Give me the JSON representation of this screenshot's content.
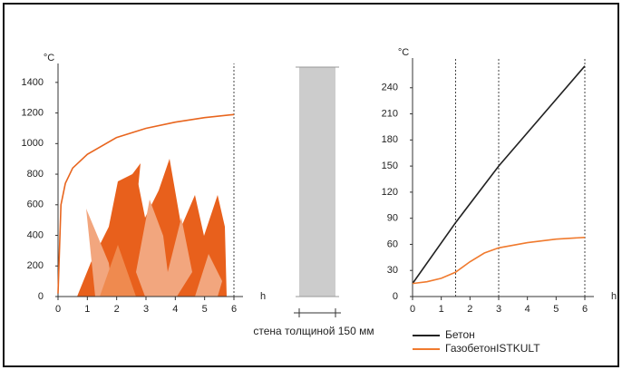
{
  "chart_data": [
    {
      "type": "line",
      "ylabel": "°C",
      "xlabel": "h",
      "xlim": [
        0,
        6
      ],
      "ylim": [
        0,
        1500
      ],
      "xticks": [
        0,
        1,
        2,
        3,
        4,
        5,
        6
      ],
      "yticks": [
        0,
        200,
        400,
        600,
        800,
        1000,
        1200,
        1400
      ],
      "vlines": [
        6
      ],
      "series": [
        {
          "color": "#e8651e",
          "x": [
            0,
            0.1,
            0.25,
            0.5,
            1,
            2,
            3,
            4,
            5,
            6
          ],
          "values": [
            20,
            600,
            740,
            840,
            930,
            1040,
            1100,
            1140,
            1170,
            1190
          ]
        }
      ]
    },
    {
      "type": "line",
      "ylabel": "°C",
      "xlabel": "h",
      "xlim": [
        0,
        6
      ],
      "ylim": [
        0,
        270
      ],
      "xticks": [
        0,
        1,
        2,
        3,
        4,
        5,
        6
      ],
      "yticks": [
        0,
        30,
        60,
        90,
        120,
        150,
        180,
        210,
        240
      ],
      "vlines": [
        1.5,
        3,
        6
      ],
      "series": [
        {
          "name": "Бетон",
          "color": "#222222",
          "x": [
            0,
            1.5,
            3,
            6
          ],
          "values": [
            15,
            85,
            150,
            265
          ]
        },
        {
          "name": "ГазобетонISTKULT",
          "color": "#f07a2e",
          "x": [
            0,
            0.5,
            1,
            1.5,
            2,
            2.5,
            3,
            4,
            5,
            6
          ],
          "values": [
            15,
            17,
            21,
            28,
            40,
            50,
            56,
            62,
            66,
            68
          ]
        }
      ]
    }
  ],
  "wall": {
    "caption": "стена толщиной 150 мм"
  }
}
